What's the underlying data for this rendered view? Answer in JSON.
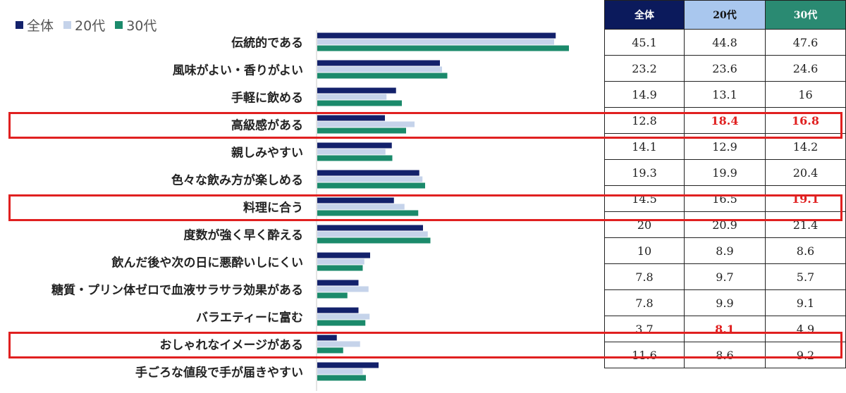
{
  "chart_data": {
    "type": "bar",
    "orientation": "horizontal",
    "categories": [
      "伝統的である",
      "風味がよい・香りがよい",
      "手軽に飲める",
      "高級感がある",
      "親しみやすい",
      "色々な飲み方が楽しめる",
      "料理に合う",
      "度数が強く早く酔える",
      "飲んだ後や次の日に悪酔いしにくい",
      "糖質・プリン体ゼロで血液サラサラ効果がある",
      "バラエティーに富む",
      "おしゃれなイメージがある",
      "手ごろな値段で手が届きやすい"
    ],
    "series": [
      {
        "name": "全体",
        "color": "#13216b",
        "values": [
          45.1,
          23.2,
          14.9,
          12.8,
          14.1,
          19.3,
          14.5,
          20,
          10,
          7.8,
          7.8,
          3.7,
          11.6
        ],
        "display": [
          "45.1",
          "23.2",
          "14.9",
          "12.8",
          "14.1",
          "19.3",
          "14.5",
          "20",
          "10",
          "7.8",
          "7.8",
          "3.7",
          "11.6"
        ]
      },
      {
        "name": "20代",
        "color": "#c5d3ea",
        "values": [
          44.8,
          23.6,
          13.1,
          18.4,
          12.9,
          19.9,
          16.5,
          20.9,
          8.9,
          9.7,
          9.9,
          8.1,
          8.6
        ],
        "display": [
          "44.8",
          "23.6",
          "13.1",
          "18.4",
          "12.9",
          "19.9",
          "16.5",
          "20.9",
          "8.9",
          "9.7",
          "9.9",
          "8.1",
          "8.6"
        ]
      },
      {
        "name": "30代",
        "color": "#1b8a6b",
        "values": [
          47.6,
          24.6,
          16,
          16.8,
          14.2,
          20.4,
          19.1,
          21.4,
          8.6,
          5.7,
          9.1,
          4.9,
          9.2
        ],
        "display": [
          "47.6",
          "24.6",
          "16",
          "16.8",
          "14.2",
          "20.4",
          "19.1",
          "21.4",
          "8.6",
          "5.7",
          "9.1",
          "4.9",
          "9.2"
        ]
      }
    ],
    "highlighted_rows": [
      3,
      6,
      11
    ],
    "highlighted_cells": [
      [
        3,
        1
      ],
      [
        3,
        2
      ],
      [
        6,
        2
      ],
      [
        11,
        1
      ]
    ],
    "table_header_colors": [
      "#0b1a5c",
      "#a9c7ee",
      "#2a8a72"
    ],
    "table_header_text_colors": [
      "#ffffff",
      "#111111",
      "#ffffff"
    ],
    "highlight_color": "#e02020"
  }
}
